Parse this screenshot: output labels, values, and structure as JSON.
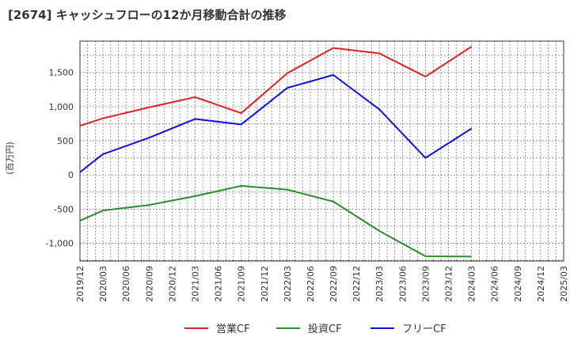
{
  "chart_data": {
    "type": "line",
    "title": "[2674]  キャッシュフローの12か月移動合計の推移",
    "ylabel": "(百万円)",
    "xlabel": "",
    "ylim": [
      -1260,
      1960
    ],
    "yticks": [
      -1000,
      -500,
      0,
      500,
      1000,
      1500
    ],
    "ytick_labels": [
      "-1,000",
      "-500",
      "0",
      "500",
      "1,000",
      "1,500"
    ],
    "x": [
      "2019/12",
      "2020/03",
      "2020/06",
      "2020/09",
      "2020/12",
      "2021/03",
      "2021/06",
      "2021/09",
      "2021/12",
      "2022/03",
      "2022/06",
      "2022/09",
      "2022/12",
      "2023/03",
      "2023/06",
      "2023/09",
      "2023/12",
      "2024/03",
      "2024/06",
      "2024/09",
      "2024/12",
      "2025/03"
    ],
    "grid": true,
    "legend_position": "bottom",
    "series": [
      {
        "name": "営業CF",
        "color": "#e02020",
        "values": [
          720,
          830,
          null,
          990,
          null,
          1140,
          null,
          905,
          null,
          1490,
          null,
          1860,
          null,
          1780,
          null,
          1440,
          null,
          1880,
          null,
          null,
          null,
          null
        ]
      },
      {
        "name": "投資CF",
        "color": "#2e8b2e",
        "values": [
          -670,
          -520,
          null,
          -440,
          null,
          -310,
          null,
          -160,
          null,
          -215,
          null,
          -390,
          null,
          -820,
          null,
          -1190,
          null,
          -1195,
          null,
          null,
          null,
          null
        ]
      },
      {
        "name": "フリーCF",
        "color": "#1010e0",
        "values": [
          40,
          305,
          null,
          545,
          null,
          820,
          null,
          740,
          null,
          1275,
          null,
          1465,
          null,
          960,
          null,
          250,
          null,
          680,
          null,
          null,
          null,
          null
        ]
      }
    ]
  }
}
